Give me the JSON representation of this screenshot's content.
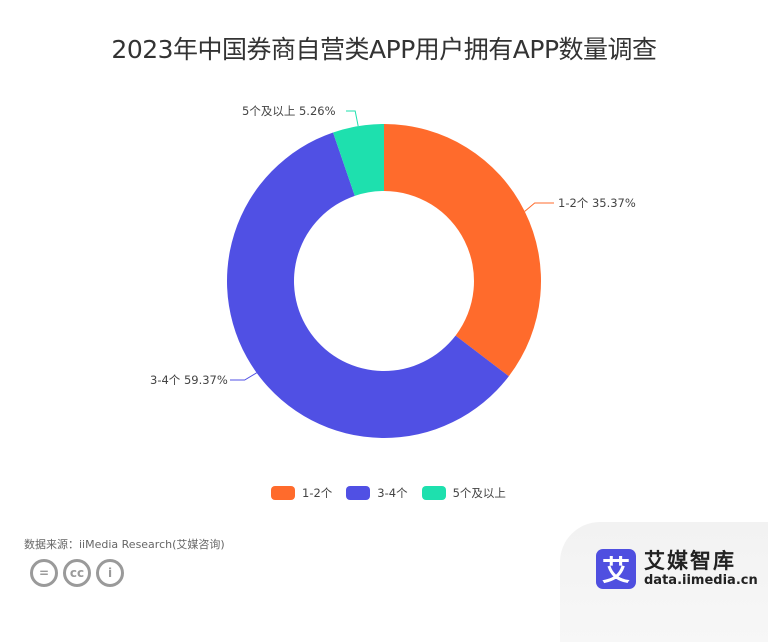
{
  "title": "2023年中国券商自营类APP用户拥有APP数量调查",
  "chart_data": {
    "type": "pie",
    "subtype": "donut",
    "title": "2023年中国券商自营类APP用户拥有APP数量调查",
    "categories": [
      "1-2个",
      "3-4个",
      "5个及以上"
    ],
    "values": [
      35.37,
      59.37,
      5.26
    ],
    "unit": "%",
    "colors": [
      "#ff6b2c",
      "#5050e4",
      "#1ee0ae"
    ],
    "labels": [
      "1-2个 35.37%",
      "3-4个 59.37%",
      "5个及以上 5.26%"
    ],
    "legend_position": "bottom",
    "start_angle": "12 o'clock, clockwise",
    "center": [
      384,
      281
    ],
    "outer_radius": 157,
    "inner_radius": 90
  },
  "legend": {
    "items": [
      {
        "label": "1-2个",
        "color": "#ff6b2c"
      },
      {
        "label": "3-4个",
        "color": "#5050e4"
      },
      {
        "label": "5个及以上",
        "color": "#1ee0ae"
      }
    ]
  },
  "footer": {
    "source": "数据来源：iiMedia Research(艾媒咨询)",
    "cc_icons": [
      "equals-icon",
      "cc-icon",
      "person-icon"
    ],
    "cc_glyphs": [
      "=",
      "cc",
      "i"
    ]
  },
  "brand": {
    "logo_char": "艾",
    "name": "艾媒智库",
    "url": "data.iimedia.cn"
  }
}
